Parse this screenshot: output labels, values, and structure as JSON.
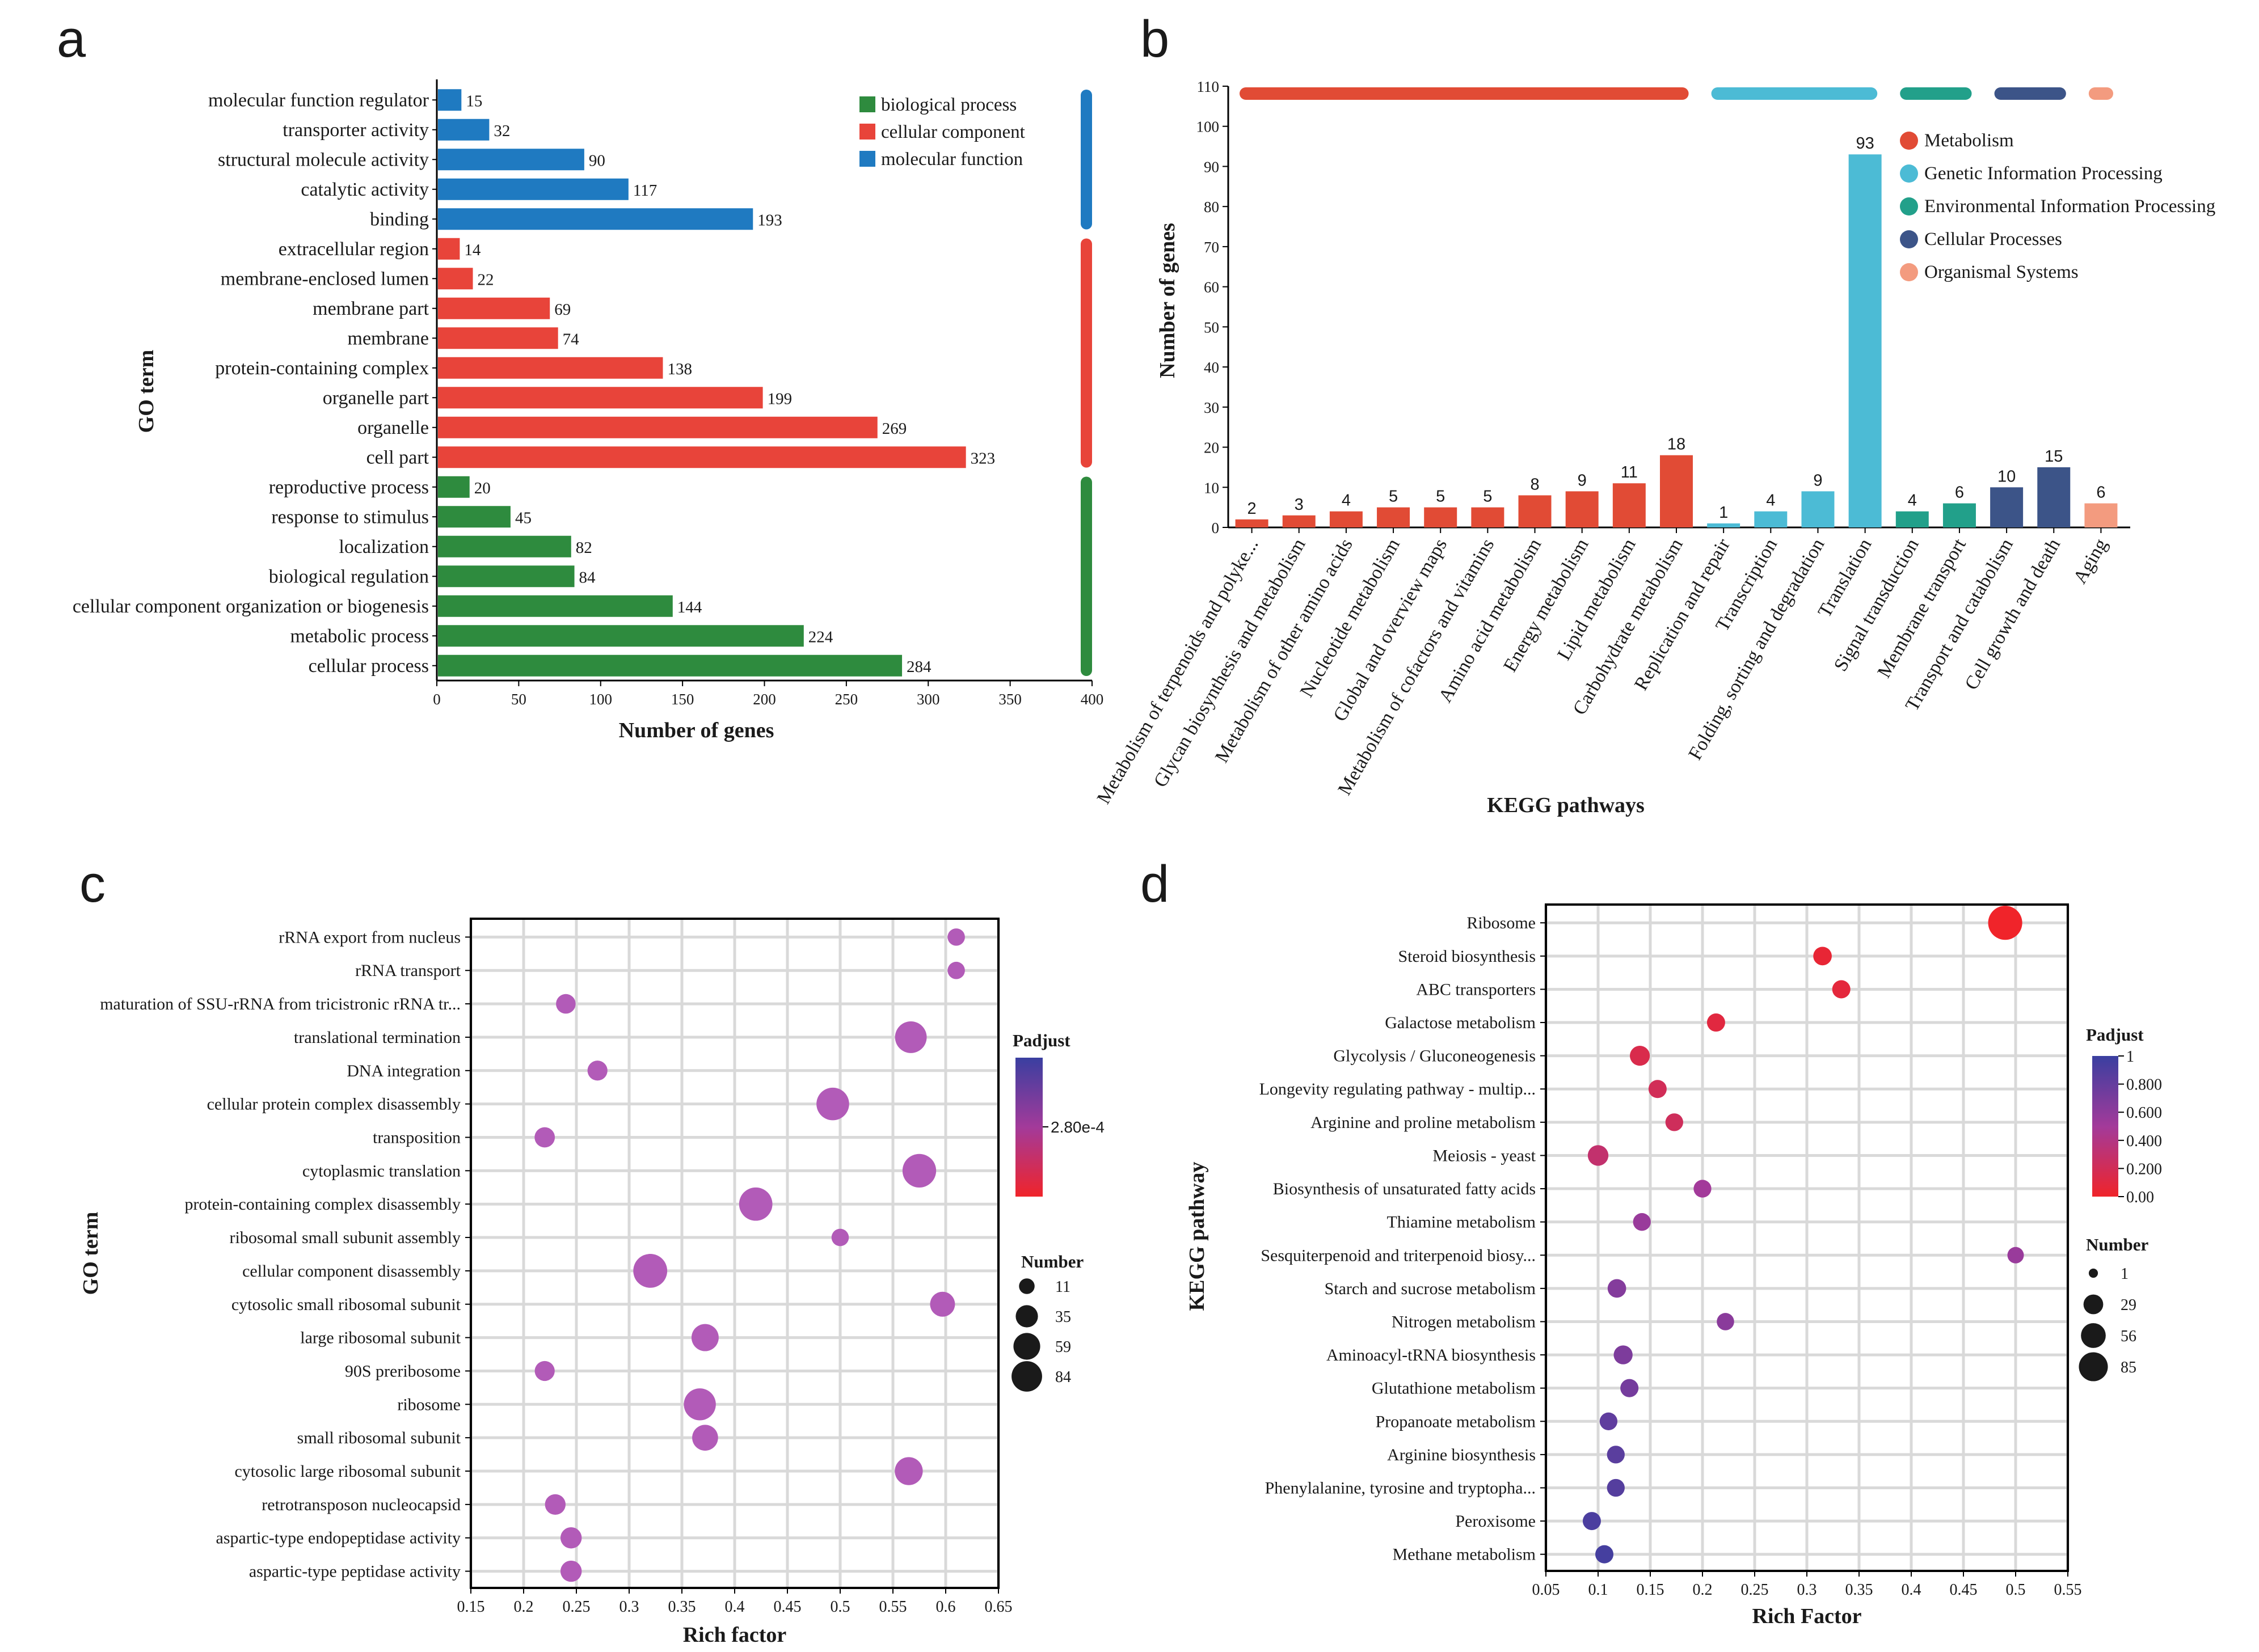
{
  "panels": {
    "a": "a",
    "b": "b",
    "c": "c",
    "d": "d"
  },
  "chart_data": [
    {
      "type": "bar",
      "orientation": "horizontal",
      "panel": "a",
      "xlabel": "Number of genes",
      "ylabel": "GO term",
      "xlim": [
        0,
        400
      ],
      "xticks": [
        0,
        50,
        100,
        150,
        200,
        250,
        300,
        350,
        400
      ],
      "categories": [
        "molecular function regulator",
        "transporter activity",
        "structural molecule activity",
        "catalytic activity",
        "binding",
        "extracellular region",
        "membrane-enclosed lumen",
        "membrane part",
        "membrane",
        "protein-containing complex",
        "organelle part",
        "organelle",
        "cell part",
        "reproductive process",
        "response to stimulus",
        "localization",
        "biological regulation",
        "cellular component organization or biogenesis",
        "metabolic process",
        "cellular process"
      ],
      "values": [
        15,
        32,
        90,
        117,
        193,
        14,
        22,
        69,
        74,
        138,
        199,
        269,
        323,
        20,
        45,
        82,
        84,
        144,
        224,
        284
      ],
      "groups": [
        "molecular function",
        "molecular function",
        "molecular function",
        "molecular function",
        "molecular function",
        "cellular component",
        "cellular component",
        "cellular component",
        "cellular component",
        "cellular component",
        "cellular component",
        "cellular component",
        "cellular component",
        "biological process",
        "biological process",
        "biological process",
        "biological process",
        "biological process",
        "biological process",
        "biological process"
      ],
      "legend": [
        {
          "name": "biological process",
          "color": "#2e8b3e"
        },
        {
          "name": "cellular component",
          "color": "#e8443a"
        },
        {
          "name": "molecular function",
          "color": "#1f7ac1"
        }
      ]
    },
    {
      "type": "bar",
      "panel": "b",
      "xlabel": "KEGG pathways",
      "ylabel": "Number of genes",
      "ylim": [
        0,
        110
      ],
      "yticks": [
        0,
        10,
        20,
        30,
        40,
        50,
        60,
        70,
        80,
        90,
        100,
        110
      ],
      "categories": [
        "Metabolism of terpenoids and polyke...",
        "Glycan biosynthesis and metabolism",
        "Metabolism of other amino acids",
        "Nucleotide metabolism",
        "Global and overview maps",
        "Metabolism of cofactors and vitamins",
        "Amino acid metabolism",
        "Energy metabolism",
        "Lipid metabolism",
        "Carbohydrate metabolism",
        "Replication and repair",
        "Transcription",
        "Folding, sorting and degradation",
        "Translation",
        "Signal transduction",
        "Membrane transport",
        "Transport and catabolism",
        "Cell growth and death",
        "Aging"
      ],
      "values": [
        2,
        3,
        4,
        5,
        5,
        5,
        8,
        9,
        11,
        18,
        1,
        4,
        9,
        93,
        4,
        6,
        10,
        15,
        6
      ],
      "groups": [
        "Metabolism",
        "Metabolism",
        "Metabolism",
        "Metabolism",
        "Metabolism",
        "Metabolism",
        "Metabolism",
        "Metabolism",
        "Metabolism",
        "Metabolism",
        "Genetic Information Processing",
        "Genetic Information Processing",
        "Genetic Information Processing",
        "Genetic Information Processing",
        "Environmental Information Processing",
        "Environmental Information Processing",
        "Cellular Processes",
        "Cellular Processes",
        "Organismal Systems"
      ],
      "legend": [
        {
          "name": "Metabolism",
          "color": "#e14b35"
        },
        {
          "name": "Genetic Information Processing",
          "color": "#4cbbd5"
        },
        {
          "name": "Environmental Information Processing",
          "color": "#22a08a"
        },
        {
          "name": "Cellular Processes",
          "color": "#3c5488"
        },
        {
          "name": "Organismal Systems",
          "color": "#f39b7f"
        }
      ]
    },
    {
      "type": "scatter",
      "panel": "c",
      "xlabel": "Rich factor",
      "ylabel": "GO term",
      "xlim": [
        0.15,
        0.65
      ],
      "xticks": [
        "0.15",
        "0.2",
        "0.25",
        "0.3",
        "0.35",
        "0.4",
        "0.45",
        "0.5",
        "0.55",
        "0.6",
        "0.65"
      ],
      "points": [
        {
          "term": "rRNA export from nucleus",
          "x": 0.61,
          "size": 11
        },
        {
          "term": "rRNA transport",
          "x": 0.61,
          "size": 11
        },
        {
          "term": "maturation of SSU-rRNA from tricistronic rRNA tr...",
          "x": 0.24,
          "size": 17
        },
        {
          "term": "translational termination",
          "x": 0.567,
          "size": 70
        },
        {
          "term": "DNA integration",
          "x": 0.27,
          "size": 18
        },
        {
          "term": "cellular protein complex disassembly",
          "x": 0.493,
          "size": 76
        },
        {
          "term": "transposition",
          "x": 0.22,
          "size": 19
        },
        {
          "term": "cytoplasmic translation",
          "x": 0.575,
          "size": 82
        },
        {
          "term": "protein-containing complex disassembly",
          "x": 0.42,
          "size": 80
        },
        {
          "term": "ribosomal small subunit assembly",
          "x": 0.5,
          "size": 11
        },
        {
          "term": "cellular component disassembly",
          "x": 0.32,
          "size": 84
        },
        {
          "term": "cytosolic small ribosomal subunit",
          "x": 0.597,
          "size": 36
        },
        {
          "term": "large ribosomal subunit",
          "x": 0.372,
          "size": 46
        },
        {
          "term": "90S preribosome",
          "x": 0.22,
          "size": 18
        },
        {
          "term": "ribosome",
          "x": 0.367,
          "size": 72
        },
        {
          "term": "small ribosomal subunit",
          "x": 0.372,
          "size": 40
        },
        {
          "term": "cytosolic large ribosomal subunit",
          "x": 0.565,
          "size": 50
        },
        {
          "term": "retrotransposon nucleocapsid",
          "x": 0.23,
          "size": 20
        },
        {
          "term": "aspartic-type endopeptidase activity",
          "x": 0.245,
          "size": 22
        },
        {
          "term": "aspartic-type peptidase activity",
          "x": 0.245,
          "size": 22
        }
      ],
      "point_color": "#b25bb8",
      "color_legend": {
        "title": "Padjust",
        "label": "2.80e-4"
      },
      "size_legend": {
        "title": "Number",
        "values": [
          11,
          35,
          59,
          84
        ]
      }
    },
    {
      "type": "scatter",
      "panel": "d",
      "xlabel": "Rich Factor",
      "ylabel": "KEGG pathway",
      "xlim": [
        0.05,
        0.55
      ],
      "xticks": [
        "0.05",
        "0.1",
        "0.15",
        "0.2",
        "0.25",
        "0.3",
        "0.35",
        "0.4",
        "0.45",
        "0.5",
        "0.55"
      ],
      "points": [
        {
          "term": "Ribosome",
          "x": 0.49,
          "size": 85,
          "padjust": 0.0
        },
        {
          "term": "Steroid biosynthesis",
          "x": 0.315,
          "size": 14,
          "padjust": 0.05
        },
        {
          "term": "ABC transporters",
          "x": 0.333,
          "size": 13,
          "padjust": 0.08
        },
        {
          "term": "Galactose metabolism",
          "x": 0.213,
          "size": 13,
          "padjust": 0.1
        },
        {
          "term": "Glycolysis / Gluconeogenesis",
          "x": 0.14,
          "size": 18,
          "padjust": 0.15
        },
        {
          "term": "Longevity regulating pathway - multip...",
          "x": 0.157,
          "size": 13,
          "padjust": 0.2
        },
        {
          "term": "Arginine and proline metabolism",
          "x": 0.173,
          "size": 12,
          "padjust": 0.22
        },
        {
          "term": "Meiosis - yeast",
          "x": 0.1,
          "size": 20,
          "padjust": 0.3
        },
        {
          "term": "Biosynthesis of unsaturated fatty acids",
          "x": 0.2,
          "size": 12,
          "padjust": 0.5
        },
        {
          "term": "Thiamine metabolism",
          "x": 0.142,
          "size": 12,
          "padjust": 0.55
        },
        {
          "term": "Sesquiterpenoid and triterpenoid biosy...",
          "x": 0.5,
          "size": 9,
          "padjust": 0.55
        },
        {
          "term": "Starch and sucrose metabolism",
          "x": 0.118,
          "size": 14,
          "padjust": 0.65
        },
        {
          "term": "Nitrogen metabolism",
          "x": 0.222,
          "size": 11,
          "padjust": 0.62
        },
        {
          "term": "Aminoacyl-tRNA biosynthesis",
          "x": 0.124,
          "size": 15,
          "padjust": 0.68
        },
        {
          "term": "Glutathione metabolism",
          "x": 0.13,
          "size": 13,
          "padjust": 0.72
        },
        {
          "term": "Propanoate metabolism",
          "x": 0.11,
          "size": 12,
          "padjust": 0.82
        },
        {
          "term": "Arginine biosynthesis",
          "x": 0.117,
          "size": 12,
          "padjust": 0.85
        },
        {
          "term": "Phenylalanine, tyrosine and tryptopha...",
          "x": 0.117,
          "size": 12,
          "padjust": 0.87
        },
        {
          "term": "Peroxisome",
          "x": 0.094,
          "size": 13,
          "padjust": 0.92
        },
        {
          "term": "Methane metabolism",
          "x": 0.106,
          "size": 13,
          "padjust": 0.95
        }
      ],
      "color_legend": {
        "title": "Padjust",
        "labels": [
          "1",
          "0.800",
          "0.600",
          "0.400",
          "0.200",
          "0.00"
        ]
      },
      "size_legend": {
        "title": "Number",
        "values": [
          1,
          29,
          56,
          85
        ]
      }
    }
  ]
}
